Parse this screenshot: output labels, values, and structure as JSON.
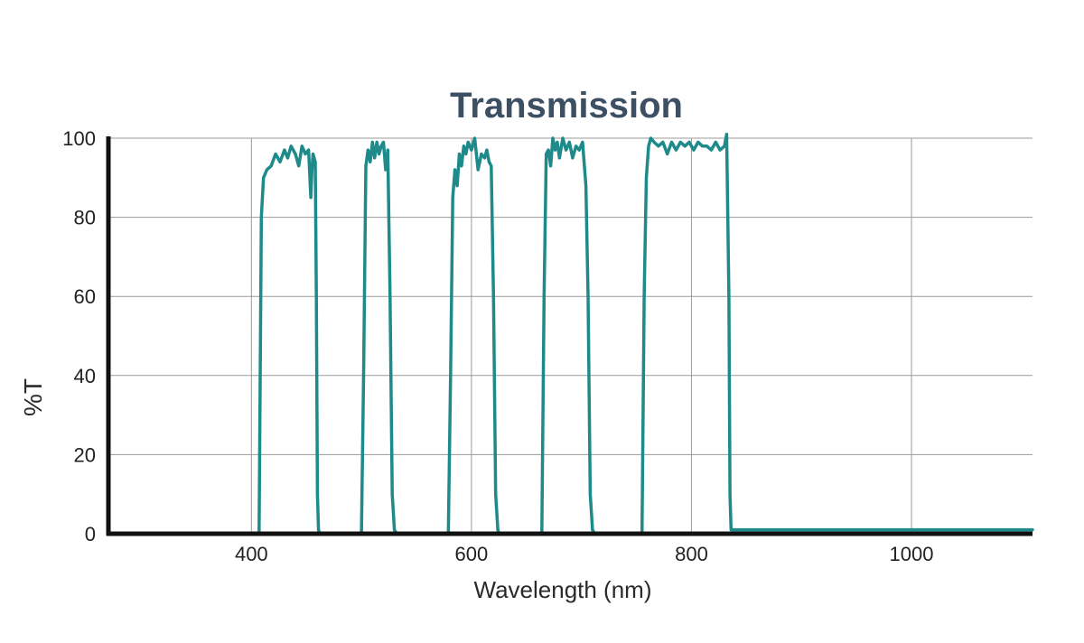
{
  "chart_data": {
    "type": "line",
    "title": "Transmission",
    "xlabel": "Wavelength (nm)",
    "ylabel": "%T",
    "xlim": [
      270,
      1110
    ],
    "ylim": [
      0,
      100
    ],
    "x_ticks": [
      400,
      600,
      800,
      1000
    ],
    "y_ticks": [
      0,
      20,
      40,
      60,
      80,
      100
    ],
    "grid": true,
    "colors": {
      "series": "#1e8a8a",
      "title": "#3d4f63",
      "axis": "#111111",
      "grid": "#9a9a9a"
    },
    "series": [
      {
        "x": [
          270,
          407,
          409,
          411,
          414,
          418,
          422,
          426,
          430,
          433,
          436,
          440,
          443,
          446,
          449,
          452,
          454,
          455,
          456,
          458,
          459,
          460,
          461,
          462,
          500,
          502,
          504,
          506,
          508,
          510,
          512,
          514,
          516,
          518,
          520,
          522,
          524,
          526,
          528,
          530,
          532,
          579,
          581,
          583,
          585,
          587,
          589,
          591,
          593,
          595,
          597,
          600,
          603,
          606,
          609,
          612,
          614,
          616,
          618,
          620,
          622,
          624,
          625,
          626,
          664,
          666,
          668,
          670,
          672,
          674,
          676,
          678,
          680,
          683,
          686,
          689,
          692,
          695,
          698,
          701,
          704,
          706,
          708,
          710,
          712,
          755,
          757,
          759,
          761,
          763,
          766,
          770,
          774,
          778,
          782,
          786,
          790,
          794,
          798,
          802,
          806,
          810,
          814,
          818,
          822,
          826,
          830,
          832,
          834,
          835,
          836,
          1110
        ],
        "y": [
          0,
          0,
          80,
          90,
          92,
          93,
          96,
          94,
          97,
          95,
          98,
          96,
          93,
          98,
          96,
          97,
          85,
          92,
          96,
          94,
          60,
          10,
          1,
          0,
          0,
          40,
          93,
          97,
          94,
          99,
          95,
          99,
          96,
          98,
          99,
          92,
          97,
          60,
          10,
          1,
          0,
          0,
          40,
          85,
          92,
          88,
          96,
          93,
          98,
          96,
          99,
          97,
          100,
          92,
          96,
          95,
          97,
          94,
          93,
          60,
          10,
          1,
          0,
          0,
          0,
          60,
          96,
          97,
          93,
          100,
          97,
          99,
          95,
          100,
          97,
          99,
          95,
          98,
          97,
          99,
          88,
          60,
          10,
          1,
          0,
          0,
          60,
          90,
          98,
          100,
          99,
          98,
          99,
          96,
          99,
          97,
          99,
          98,
          99,
          97,
          99,
          98,
          98,
          97,
          99,
          97,
          98,
          101,
          60,
          10,
          1,
          1
        ]
      }
    ]
  }
}
